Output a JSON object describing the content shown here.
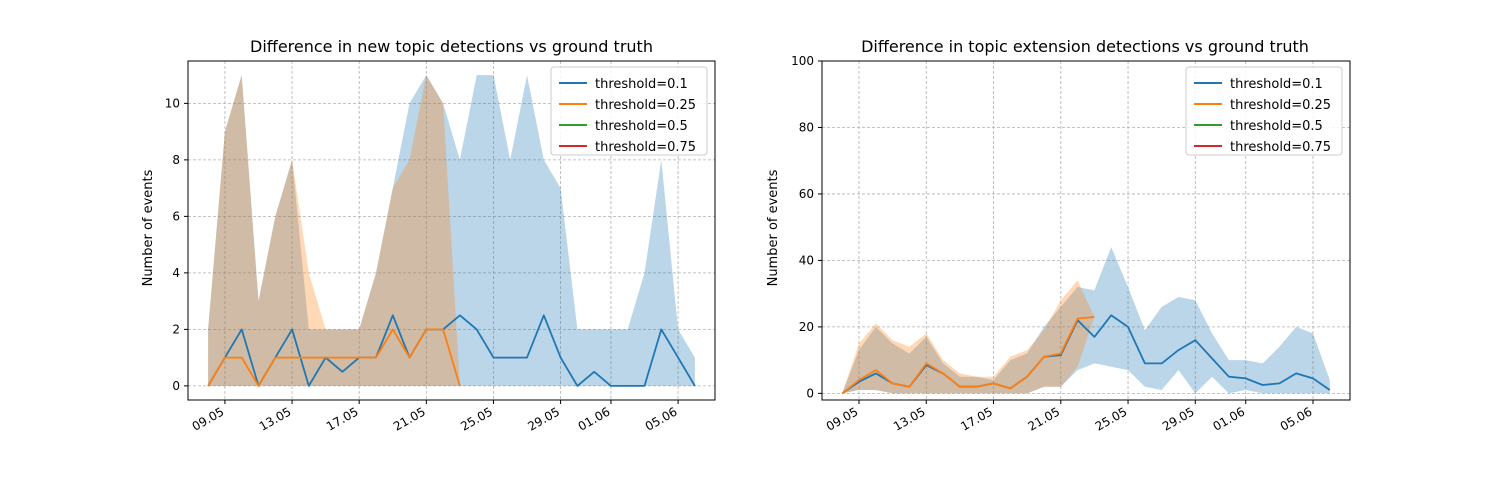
{
  "chart_data": [
    {
      "type": "line",
      "title": "Difference in new topic detections vs ground truth",
      "xlabel": "",
      "ylabel": "Number of events",
      "x_start": "2025-05-08",
      "x_tick_labels": [
        "09.05",
        "13.05",
        "17.05",
        "21.05",
        "25.05",
        "29.05",
        "01.06",
        "05.06"
      ],
      "ylim": [
        -0.5,
        11.5
      ],
      "y_ticks": [
        0,
        2,
        4,
        6,
        8,
        10
      ],
      "grid": true,
      "legend": "top-right",
      "series": [
        {
          "name": "threshold=0.1",
          "color": "#1f77b4",
          "x": [
            "08.05",
            "09.05",
            "10.05",
            "11.05",
            "12.05",
            "13.05",
            "14.05",
            "15.05",
            "16.05",
            "17.05",
            "18.05",
            "19.05",
            "20.05",
            "21.05",
            "22.05",
            "23.05",
            "24.05",
            "25.05",
            "26.05",
            "27.05",
            "28.05",
            "29.05",
            "30.05",
            "31.05",
            "01.06",
            "02.06",
            "03.06",
            "04.06",
            "05.06",
            "06.06"
          ],
          "values": [
            0,
            1,
            2,
            0,
            1,
            2,
            0,
            1,
            0.5,
            1,
            1,
            2.5,
            1,
            2,
            2,
            2.5,
            2,
            1,
            1,
            1,
            2.5,
            1,
            0,
            0.5,
            0,
            0,
            0,
            2,
            1,
            0
          ],
          "band_high": [
            2,
            9,
            11,
            3,
            6,
            8,
            2,
            2,
            2,
            2,
            4,
            7,
            10,
            11,
            10,
            8,
            11,
            11,
            8,
            11,
            8,
            7,
            2,
            2,
            2,
            2,
            4,
            8,
            2,
            1
          ],
          "band_low": [
            0,
            0,
            0,
            0,
            0,
            0,
            0,
            0,
            0,
            0,
            0,
            0,
            0,
            0,
            0,
            0,
            0,
            0,
            0,
            0,
            0,
            0,
            0,
            0,
            0,
            0,
            0,
            0,
            0,
            0
          ]
        },
        {
          "name": "threshold=0.25",
          "color": "#ff7f0e",
          "x": [
            "08.05",
            "09.05",
            "10.05",
            "11.05",
            "12.05",
            "13.05",
            "14.05",
            "15.05",
            "16.05",
            "17.05",
            "18.05",
            "19.05",
            "20.05",
            "21.05",
            "22.05",
            "23.05"
          ],
          "values": [
            0,
            1,
            1,
            0,
            1,
            1,
            1,
            1,
            1,
            1,
            1,
            2,
            1,
            2,
            2,
            0
          ],
          "band_high": [
            2,
            9,
            11,
            3,
            6,
            8,
            4,
            2,
            2,
            2,
            4,
            7,
            8,
            11,
            10,
            0
          ],
          "band_low": [
            0,
            0,
            0,
            0,
            0,
            0,
            0,
            0,
            0,
            0,
            0,
            0,
            0,
            0,
            0,
            0
          ]
        },
        {
          "name": "threshold=0.5",
          "color": "#2ca02c",
          "x": [],
          "values": []
        },
        {
          "name": "threshold=0.75",
          "color": "#d62728",
          "x": [],
          "values": []
        }
      ]
    },
    {
      "type": "line",
      "title": "Difference in topic extension detections vs ground truth",
      "xlabel": "",
      "ylabel": "Number of events",
      "x_start": "2025-05-08",
      "x_tick_labels": [
        "09.05",
        "13.05",
        "17.05",
        "21.05",
        "25.05",
        "29.05",
        "01.06",
        "05.06"
      ],
      "ylim": [
        -2,
        100
      ],
      "y_ticks": [
        0,
        20,
        40,
        60,
        80,
        100
      ],
      "grid": true,
      "legend": "top-right",
      "series": [
        {
          "name": "threshold=0.1",
          "color": "#1f77b4",
          "x": [
            "08.05",
            "09.05",
            "10.05",
            "11.05",
            "12.05",
            "13.05",
            "14.05",
            "15.05",
            "16.05",
            "17.05",
            "18.05",
            "19.05",
            "20.05",
            "21.05",
            "22.05",
            "23.05",
            "24.05",
            "25.05",
            "26.05",
            "27.05",
            "28.05",
            "29.05",
            "30.05",
            "31.05",
            "01.06",
            "02.06",
            "03.06",
            "04.06",
            "05.06",
            "06.06"
          ],
          "values": [
            0,
            3.5,
            6,
            3,
            2,
            8.5,
            6,
            2,
            2,
            3,
            1.5,
            5,
            11,
            11.5,
            22,
            17,
            23.5,
            20,
            9,
            9,
            13,
            16,
            10.5,
            5,
            4.5,
            2.5,
            3,
            6,
            4.5,
            1
          ],
          "band_high": [
            0,
            13,
            20,
            15,
            12,
            17,
            9,
            5,
            5,
            4,
            10,
            12,
            20,
            26,
            32,
            31,
            44,
            32,
            19,
            26,
            29,
            28,
            18,
            10,
            10,
            9,
            14,
            20,
            18,
            4
          ],
          "band_low": [
            0,
            1,
            1,
            0,
            0,
            0,
            0,
            0,
            0,
            0,
            0,
            0,
            2,
            2,
            7,
            9,
            8,
            7,
            2,
            1,
            7,
            0,
            5,
            0,
            1,
            0,
            0,
            0,
            0,
            0
          ]
        },
        {
          "name": "threshold=0.25",
          "color": "#ff7f0e",
          "x": [
            "08.05",
            "09.05",
            "10.05",
            "11.05",
            "12.05",
            "13.05",
            "14.05",
            "15.05",
            "16.05",
            "17.05",
            "18.05",
            "19.05",
            "20.05",
            "21.05",
            "22.05",
            "23.05"
          ],
          "values": [
            0,
            4,
            7,
            3,
            2,
            9,
            6,
            2,
            2,
            3,
            1.5,
            5,
            11,
            12,
            22.5,
            23
          ],
          "band_high": [
            0,
            15,
            21,
            16,
            14,
            18,
            10,
            6,
            5,
            5,
            11,
            13,
            19,
            28,
            34,
            23
          ],
          "band_low": [
            0,
            1,
            1,
            0,
            0,
            0,
            0,
            0,
            0,
            0,
            0,
            0,
            2,
            2,
            8,
            23
          ]
        },
        {
          "name": "threshold=0.5",
          "color": "#2ca02c",
          "x": [],
          "values": []
        },
        {
          "name": "threshold=0.75",
          "color": "#d62728",
          "x": [],
          "values": []
        }
      ]
    }
  ]
}
